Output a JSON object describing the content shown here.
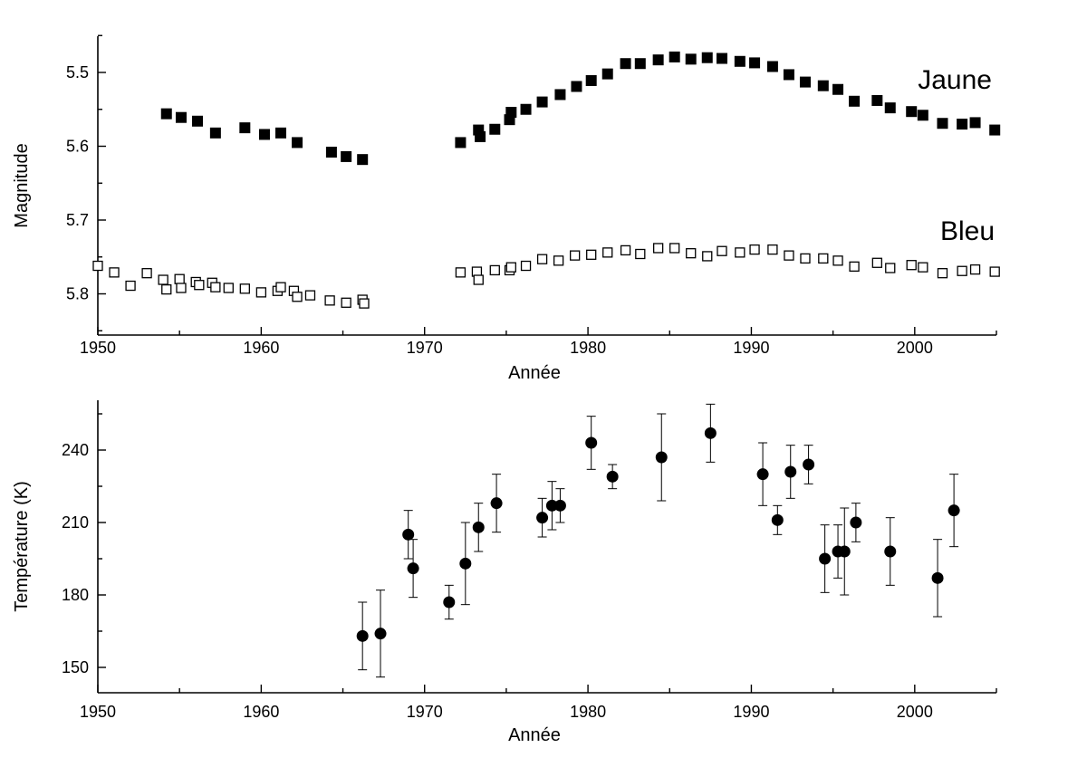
{
  "chart_data": [
    {
      "type": "scatter",
      "xlabel": "Année",
      "ylabel": "Magnitude",
      "xlim": [
        1950,
        2005
      ],
      "ylim": [
        5.45,
        5.85
      ],
      "y_inverted": true,
      "x_ticks": [
        1950,
        1960,
        1970,
        1980,
        1990,
        2000
      ],
      "y_ticks": [
        "5.5",
        "5.6",
        "5.7",
        "5.8"
      ],
      "series": [
        {
          "name": "Jaune",
          "marker": "filled-square",
          "color": "#000000",
          "points": [
            [
              1954.2,
              5.556
            ],
            [
              1955.1,
              5.561
            ],
            [
              1956.1,
              5.566
            ],
            [
              1957.2,
              5.582
            ],
            [
              1959.0,
              5.575
            ],
            [
              1960.2,
              5.584
            ],
            [
              1961.2,
              5.582
            ],
            [
              1962.2,
              5.595
            ],
            [
              1964.3,
              5.608
            ],
            [
              1965.2,
              5.614
            ],
            [
              1966.2,
              5.618
            ],
            [
              1972.2,
              5.595
            ],
            [
              1973.3,
              5.578
            ],
            [
              1973.4,
              5.587
            ],
            [
              1974.3,
              5.577
            ],
            [
              1975.2,
              5.564
            ],
            [
              1975.3,
              5.554
            ],
            [
              1976.2,
              5.55
            ],
            [
              1977.2,
              5.54
            ],
            [
              1978.3,
              5.53
            ],
            [
              1979.3,
              5.519
            ],
            [
              1980.2,
              5.511
            ],
            [
              1981.2,
              5.502
            ],
            [
              1982.3,
              5.488
            ],
            [
              1983.2,
              5.488
            ],
            [
              1984.3,
              5.483
            ],
            [
              1985.3,
              5.479
            ],
            [
              1986.3,
              5.482
            ],
            [
              1987.3,
              5.48
            ],
            [
              1988.2,
              5.481
            ],
            [
              1989.3,
              5.485
            ],
            [
              1990.2,
              5.487
            ],
            [
              1991.3,
              5.492
            ],
            [
              1992.3,
              5.503
            ],
            [
              1993.3,
              5.513
            ],
            [
              1994.4,
              5.518
            ],
            [
              1995.3,
              5.523
            ],
            [
              1996.3,
              5.539
            ],
            [
              1997.7,
              5.538
            ],
            [
              1998.5,
              5.548
            ],
            [
              1999.8,
              5.553
            ],
            [
              2000.5,
              5.558
            ],
            [
              2001.7,
              5.569
            ],
            [
              2002.9,
              5.57
            ],
            [
              2003.7,
              5.568
            ],
            [
              2004.9,
              5.578
            ]
          ]
        },
        {
          "name": "Bleu",
          "marker": "open-square",
          "color": "#000000",
          "points": [
            [
              1950.0,
              5.762
            ],
            [
              1951.0,
              5.771
            ],
            [
              1952.0,
              5.789
            ],
            [
              1953.0,
              5.772
            ],
            [
              1954.0,
              5.781
            ],
            [
              1954.2,
              5.794
            ],
            [
              1955.0,
              5.78
            ],
            [
              1955.1,
              5.792
            ],
            [
              1956.0,
              5.784
            ],
            [
              1956.2,
              5.788
            ],
            [
              1957.0,
              5.785
            ],
            [
              1957.2,
              5.791
            ],
            [
              1958.0,
              5.792
            ],
            [
              1959.0,
              5.793
            ],
            [
              1960.0,
              5.798
            ],
            [
              1961.0,
              5.796
            ],
            [
              1961.2,
              5.791
            ],
            [
              1962.0,
              5.796
            ],
            [
              1962.2,
              5.804
            ],
            [
              1963.0,
              5.802
            ],
            [
              1964.2,
              5.809
            ],
            [
              1965.2,
              5.812
            ],
            [
              1966.2,
              5.808
            ],
            [
              1966.3,
              5.813
            ],
            [
              1972.2,
              5.771
            ],
            [
              1973.2,
              5.77
            ],
            [
              1973.3,
              5.781
            ],
            [
              1974.3,
              5.768
            ],
            [
              1975.2,
              5.768
            ],
            [
              1975.3,
              5.764
            ],
            [
              1976.2,
              5.762
            ],
            [
              1977.2,
              5.753
            ],
            [
              1978.2,
              5.755
            ],
            [
              1979.2,
              5.748
            ],
            [
              1980.2,
              5.747
            ],
            [
              1981.2,
              5.744
            ],
            [
              1982.3,
              5.741
            ],
            [
              1983.2,
              5.746
            ],
            [
              1984.3,
              5.738
            ],
            [
              1985.3,
              5.738
            ],
            [
              1986.3,
              5.745
            ],
            [
              1987.3,
              5.749
            ],
            [
              1988.2,
              5.742
            ],
            [
              1989.3,
              5.744
            ],
            [
              1990.2,
              5.74
            ],
            [
              1991.3,
              5.74
            ],
            [
              1992.3,
              5.748
            ],
            [
              1993.3,
              5.752
            ],
            [
              1994.4,
              5.752
            ],
            [
              1995.3,
              5.755
            ],
            [
              1996.3,
              5.763
            ],
            [
              1997.7,
              5.758
            ],
            [
              1998.5,
              5.765
            ],
            [
              1999.8,
              5.761
            ],
            [
              2000.5,
              5.764
            ],
            [
              2001.7,
              5.772
            ],
            [
              2002.9,
              5.769
            ],
            [
              2003.7,
              5.767
            ],
            [
              2004.9,
              5.77
            ]
          ]
        }
      ]
    },
    {
      "type": "scatter",
      "xlabel": "Année",
      "ylabel": "Température (K)",
      "xlim": [
        1950,
        2005
      ],
      "ylim": [
        140,
        260
      ],
      "x_ticks": [
        1950,
        1960,
        1970,
        1980,
        1990,
        2000
      ],
      "y_ticks": [
        150,
        180,
        210,
        240
      ],
      "series": [
        {
          "name": "",
          "marker": "filled-circle",
          "color": "#000000",
          "points": [
            {
              "x": 1966.2,
              "y": 163,
              "err": 14
            },
            {
              "x": 1967.3,
              "y": 164,
              "err": 18
            },
            {
              "x": 1969.0,
              "y": 205,
              "err": 10
            },
            {
              "x": 1969.3,
              "y": 191,
              "err": 12
            },
            {
              "x": 1971.5,
              "y": 177,
              "err": 7
            },
            {
              "x": 1972.5,
              "y": 193,
              "err": 17
            },
            {
              "x": 1973.3,
              "y": 208,
              "err": 10
            },
            {
              "x": 1974.4,
              "y": 218,
              "err": 12
            },
            {
              "x": 1977.2,
              "y": 212,
              "err": 8
            },
            {
              "x": 1977.8,
              "y": 217,
              "err": 10
            },
            {
              "x": 1978.3,
              "y": 217,
              "err": 7
            },
            {
              "x": 1980.2,
              "y": 243,
              "err": 11
            },
            {
              "x": 1981.5,
              "y": 229,
              "err": 5
            },
            {
              "x": 1984.5,
              "y": 237,
              "err": 18
            },
            {
              "x": 1987.5,
              "y": 247,
              "err": 12
            },
            {
              "x": 1990.7,
              "y": 230,
              "err": 13
            },
            {
              "x": 1991.6,
              "y": 211,
              "err": 6
            },
            {
              "x": 1992.4,
              "y": 231,
              "err": 11
            },
            {
              "x": 1993.5,
              "y": 234,
              "err": 8
            },
            {
              "x": 1994.5,
              "y": 195,
              "err": 14
            },
            {
              "x": 1995.3,
              "y": 198,
              "err": 11
            },
            {
              "x": 1995.7,
              "y": 198,
              "err": 18
            },
            {
              "x": 1996.4,
              "y": 210,
              "err": 8
            },
            {
              "x": 1998.5,
              "y": 198,
              "err": 14
            },
            {
              "x": 2001.4,
              "y": 187,
              "err": 16
            },
            {
              "x": 2002.4,
              "y": 215,
              "err": 15
            }
          ]
        }
      ]
    }
  ]
}
